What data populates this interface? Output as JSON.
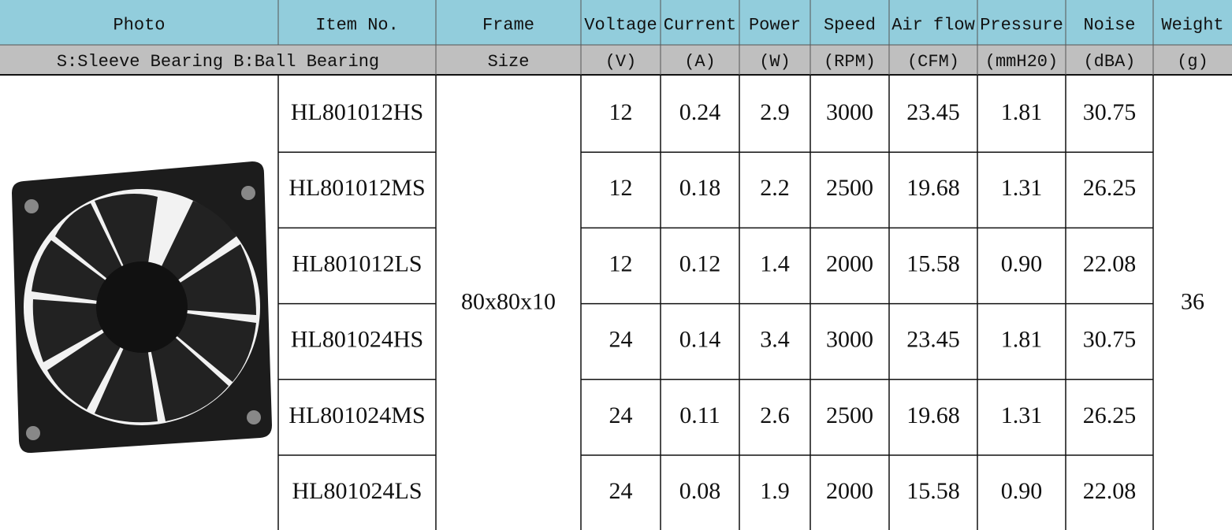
{
  "header": {
    "row1": [
      "Photo",
      "Item No.",
      "Frame",
      "Voltage",
      "Current",
      "Power",
      "Speed",
      "Air flow",
      "Pressure",
      "Noise",
      "Weight"
    ],
    "row2": [
      "S:Sleeve Bearing B:Ball Bearing",
      "Size",
      "(V)",
      "(A)",
      "(W)",
      "(RPM)",
      "(CFM)",
      "(mmH20)",
      "(dBA)",
      "(g)"
    ]
  },
  "table": {
    "frame": "80x80x10",
    "weight": "36",
    "rows": [
      [
        "HL801012HS",
        "12",
        "0.24",
        "2.9",
        "3000",
        "23.45",
        "1.81",
        "30.75"
      ],
      [
        "HL801012MS",
        "12",
        "0.18",
        "2.2",
        "2500",
        "19.68",
        "1.31",
        "26.25"
      ],
      [
        "HL801012LS",
        "12",
        "0.12",
        "1.4",
        "2000",
        "15.58",
        "0.90",
        "22.08"
      ],
      [
        "HL801024HS",
        "24",
        "0.14",
        "3.4",
        "3000",
        "23.45",
        "1.81",
        "30.75"
      ],
      [
        "HL801024MS",
        "24",
        "0.11",
        "2.6",
        "2500",
        "19.68",
        "1.31",
        "26.25"
      ],
      [
        "HL801024LS",
        "24",
        "0.08",
        "1.9",
        "2000",
        "15.58",
        "0.90",
        "22.08"
      ]
    ]
  }
}
